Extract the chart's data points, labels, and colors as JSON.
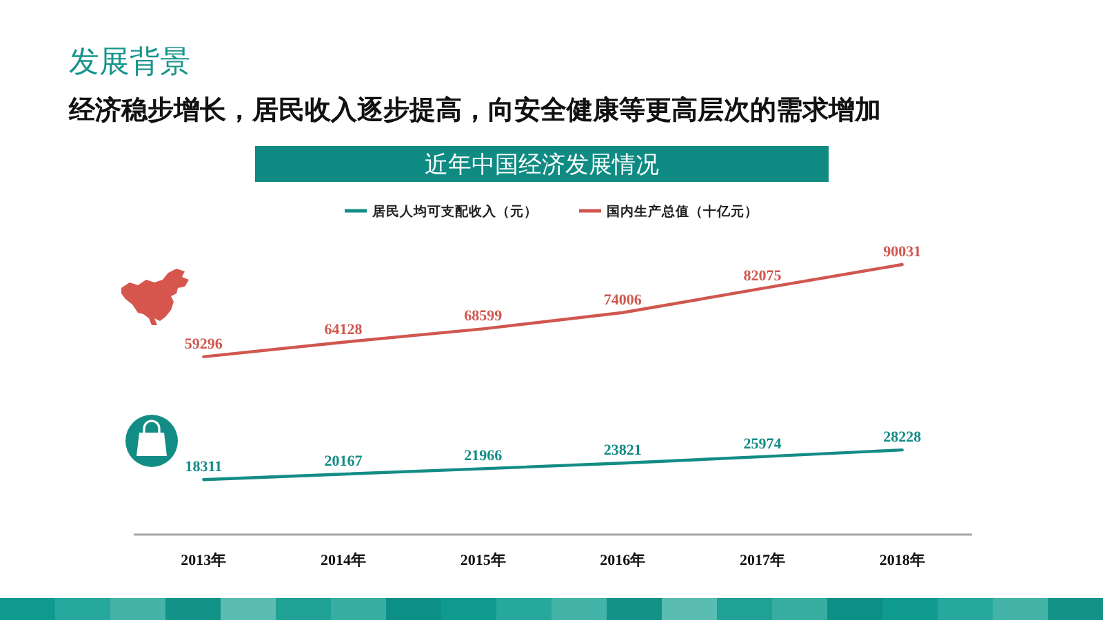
{
  "chart_data": {
    "type": "line",
    "title": "近年中国经济发展情况",
    "annotations": [
      "发展背景",
      "经济稳步增长，居民收入逐步提高，向安全健康等更高层次的需求增加"
    ],
    "categories": [
      "2013年",
      "2014年",
      "2015年",
      "2016年",
      "2017年",
      "2018年"
    ],
    "series": [
      {
        "name": "居民人均可支配收入（元）",
        "color": "#148c86",
        "values": [
          18311,
          20167,
          21966,
          23821,
          25974,
          28228
        ]
      },
      {
        "name": "国内生产总值（十亿元）",
        "color": "#d0574f",
        "values": [
          59296,
          64128,
          68599,
          74006,
          82075,
          90031
        ]
      }
    ],
    "tick_labels": "x",
    "data_labels": true,
    "legend": "top"
  }
}
